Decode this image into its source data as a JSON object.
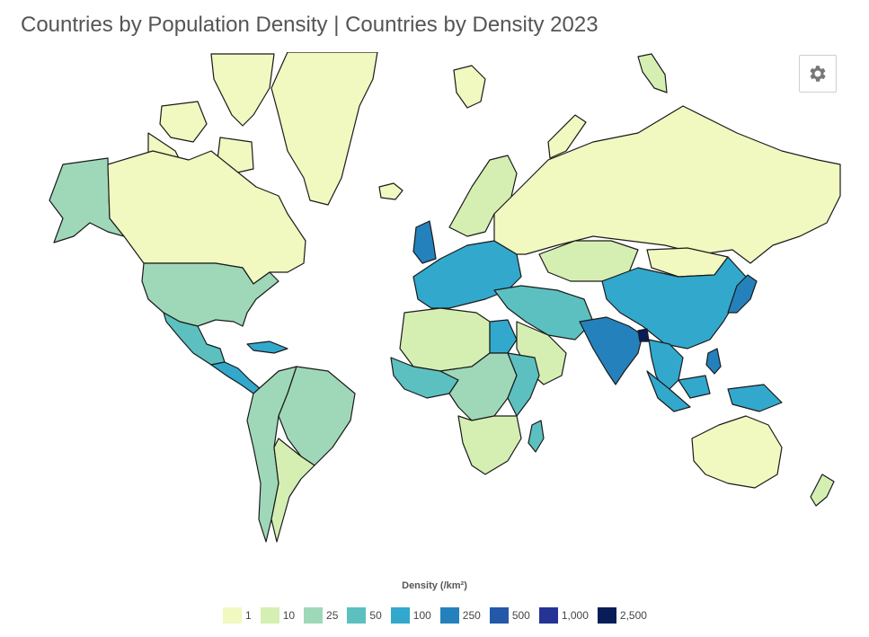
{
  "title": "Countries by Population Density | Countries by Density 2023",
  "settings": {
    "icon": "gear-icon"
  },
  "legend": {
    "title": "Density (/km²)",
    "items": [
      {
        "label": "1",
        "color": "#f1f8c0"
      },
      {
        "label": "10",
        "color": "#d5efb3"
      },
      {
        "label": "25",
        "color": "#9fd8b8"
      },
      {
        "label": "50",
        "color": "#5cc0c0"
      },
      {
        "label": "100",
        "color": "#32a8cc"
      },
      {
        "label": "250",
        "color": "#2581bb"
      },
      {
        "label": "500",
        "color": "#2458a8"
      },
      {
        "label": "1,000",
        "color": "#253494"
      },
      {
        "label": "2,500",
        "color": "#081d58"
      }
    ]
  },
  "regions": [
    {
      "name": "greenland",
      "bucket": "1"
    },
    {
      "name": "canada",
      "bucket": "1"
    },
    {
      "name": "alaska",
      "bucket": "25"
    },
    {
      "name": "united-states",
      "bucket": "25"
    },
    {
      "name": "mexico",
      "bucket": "50"
    },
    {
      "name": "central-america",
      "bucket": "100"
    },
    {
      "name": "brazil",
      "bucket": "25"
    },
    {
      "name": "argentina",
      "bucket": "10"
    },
    {
      "name": "south-america-west",
      "bucket": "25"
    },
    {
      "name": "russia",
      "bucket": "1"
    },
    {
      "name": "kazakhstan",
      "bucket": "10"
    },
    {
      "name": "mongolia",
      "bucket": "1"
    },
    {
      "name": "china",
      "bucket": "100"
    },
    {
      "name": "india",
      "bucket": "250"
    },
    {
      "name": "bangladesh",
      "bucket": "2,500"
    },
    {
      "name": "japan",
      "bucket": "250"
    },
    {
      "name": "australia",
      "bucket": "1"
    },
    {
      "name": "new-zealand",
      "bucket": "10"
    },
    {
      "name": "scandinavia",
      "bucket": "10"
    },
    {
      "name": "western-europe",
      "bucket": "100"
    },
    {
      "name": "united-kingdom",
      "bucket": "250"
    },
    {
      "name": "north-africa",
      "bucket": "10"
    },
    {
      "name": "egypt",
      "bucket": "100"
    },
    {
      "name": "west-africa",
      "bucket": "50"
    },
    {
      "name": "central-africa",
      "bucket": "25"
    },
    {
      "name": "east-africa",
      "bucket": "50"
    },
    {
      "name": "southern-africa",
      "bucket": "10"
    },
    {
      "name": "madagascar",
      "bucket": "50"
    },
    {
      "name": "middle-east",
      "bucket": "50"
    },
    {
      "name": "arabia",
      "bucket": "10"
    },
    {
      "name": "southeast-asia",
      "bucket": "100"
    },
    {
      "name": "indonesia",
      "bucket": "100"
    },
    {
      "name": "philippines",
      "bucket": "250"
    },
    {
      "name": "iceland",
      "bucket": "1"
    },
    {
      "name": "svalbard",
      "bucket": "10"
    },
    {
      "name": "arctic-islands",
      "bucket": "1"
    }
  ]
}
